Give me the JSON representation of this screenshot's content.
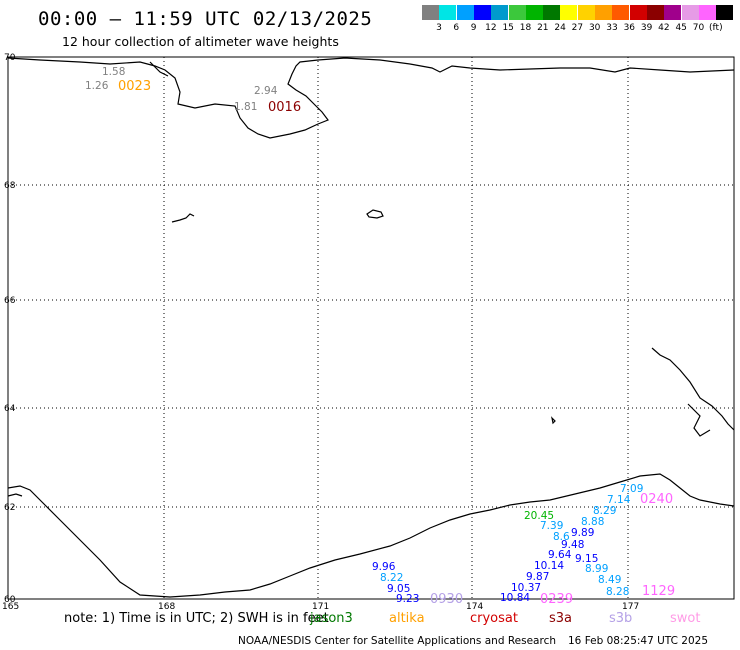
{
  "title": "00:00 — 11:59 UTC 02/13/2025",
  "subtitle": "12 hour collection of altimeter wave heights",
  "legend": {
    "colors": [
      "#808080",
      "#00e5e5",
      "#00a0ff",
      "#0000ff",
      "#009acd",
      "#3cc83c",
      "#00b400",
      "#007800",
      "#ffff00",
      "#ffd200",
      "#ffa000",
      "#ff5a00",
      "#d20000",
      "#8b0000",
      "#a0008c",
      "#e69be6",
      "#ff64ff",
      "#000000"
    ],
    "tick_labels": [
      "3",
      "6",
      "9",
      "12",
      "15",
      "18",
      "21",
      "24",
      "27",
      "30",
      "33",
      "36",
      "39",
      "42",
      "45",
      "70",
      "(ft)"
    ]
  },
  "map": {
    "lat_labels": [
      "70",
      "68",
      "66",
      "64",
      "62",
      "60"
    ],
    "lon_labels": [
      "165",
      "168",
      "171",
      "174",
      "177"
    ],
    "readings": [
      {
        "text": "1.58",
        "color": "#808080"
      },
      {
        "text": "1.26",
        "color": "#808080"
      },
      {
        "text": "2.94",
        "color": "#808080"
      },
      {
        "text": "1.81",
        "color": "#808080"
      },
      {
        "text": "0023",
        "color": "#ffa000"
      },
      {
        "text": "0016",
        "color": "#8b0000"
      },
      {
        "text": "7.09",
        "color": "#00a0ff"
      },
      {
        "text": "7.14",
        "color": "#00a0ff"
      },
      {
        "text": "0240",
        "color": "#ff64ff"
      },
      {
        "text": "8.29",
        "color": "#00a0ff"
      },
      {
        "text": "20.45",
        "color": "#00b400"
      },
      {
        "text": "8.88",
        "color": "#00a0ff"
      },
      {
        "text": "7.39",
        "color": "#00a0ff"
      },
      {
        "text": "8.6",
        "color": "#00a0ff"
      },
      {
        "text": "9.89",
        "color": "#0000ff"
      },
      {
        "text": "9.48",
        "color": "#0000ff"
      },
      {
        "text": "9.64",
        "color": "#0000ff"
      },
      {
        "text": "9.15",
        "color": "#0000ff"
      },
      {
        "text": "10.14",
        "color": "#0000ff"
      },
      {
        "text": "8.99",
        "color": "#00a0ff"
      },
      {
        "text": "9.87",
        "color": "#0000ff"
      },
      {
        "text": "9.96",
        "color": "#0000ff"
      },
      {
        "text": "8.49",
        "color": "#00a0ff"
      },
      {
        "text": "8.22",
        "color": "#00a0ff"
      },
      {
        "text": "10.37",
        "color": "#0000ff"
      },
      {
        "text": "9.05",
        "color": "#0000ff"
      },
      {
        "text": "8.28",
        "color": "#00a0ff"
      },
      {
        "text": "1129",
        "color": "#ff64ff"
      },
      {
        "text": "9.23",
        "color": "#0000ff"
      },
      {
        "text": "0930",
        "color": "#b4a0e6"
      },
      {
        "text": "10.84",
        "color": "#0000ff"
      },
      {
        "text": "0239",
        "color": "#ff64ff"
      }
    ]
  },
  "note": "note: 1) Time is in UTC; 2) SWH is in feet",
  "missions": [
    {
      "name": "jason3",
      "color": "#007800"
    },
    {
      "name": "altika",
      "color": "#ffa000"
    },
    {
      "name": "cryosat",
      "color": "#d20000"
    },
    {
      "name": "s3a",
      "color": "#8b0000"
    },
    {
      "name": "s3b",
      "color": "#b4a0e6"
    },
    {
      "name": "swot",
      "color": "#ff9be6"
    }
  ],
  "footer": {
    "agency": "NOAA/NESDIS Center for Satellite Applications and Research",
    "timestamp": "16 Feb 08:25:47 UTC 2025"
  }
}
